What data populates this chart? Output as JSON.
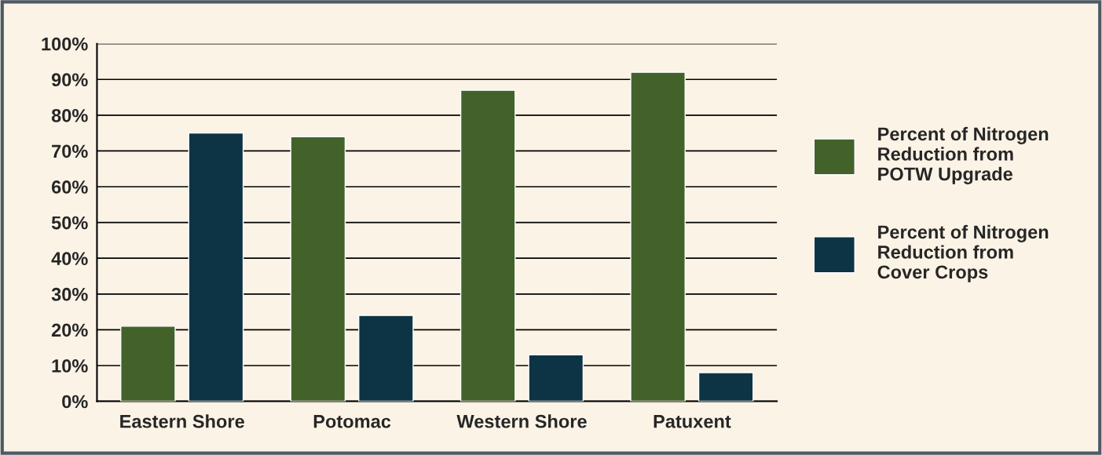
{
  "chart_data": {
    "type": "bar",
    "categories": [
      "Eastern Shore",
      "Potomac",
      "Western Shore",
      "Patuxent"
    ],
    "series": [
      {
        "name": "Percent of Nitrogen\nReduction from\nPOTW Upgrade",
        "color": "#42622a",
        "values": [
          21,
          74,
          87,
          92
        ]
      },
      {
        "name": "Percent of Nitrogen\nReduction from\nCover Crops",
        "color": "#0d3444",
        "values": [
          75,
          24,
          13,
          8
        ]
      }
    ],
    "ylim": [
      0,
      100
    ],
    "yticks": [
      {
        "value": 0,
        "label": "0%"
      },
      {
        "value": 10,
        "label": "10%"
      },
      {
        "value": 20,
        "label": "20%"
      },
      {
        "value": 30,
        "label": "30%"
      },
      {
        "value": 40,
        "label": "40%"
      },
      {
        "value": 50,
        "label": "50%"
      },
      {
        "value": 60,
        "label": "60%"
      },
      {
        "value": 70,
        "label": "70%"
      },
      {
        "value": 80,
        "label": "80%"
      },
      {
        "value": 90,
        "label": "90%"
      },
      {
        "value": 100,
        "label": "100%"
      }
    ],
    "grid": "y",
    "legend": "right"
  }
}
